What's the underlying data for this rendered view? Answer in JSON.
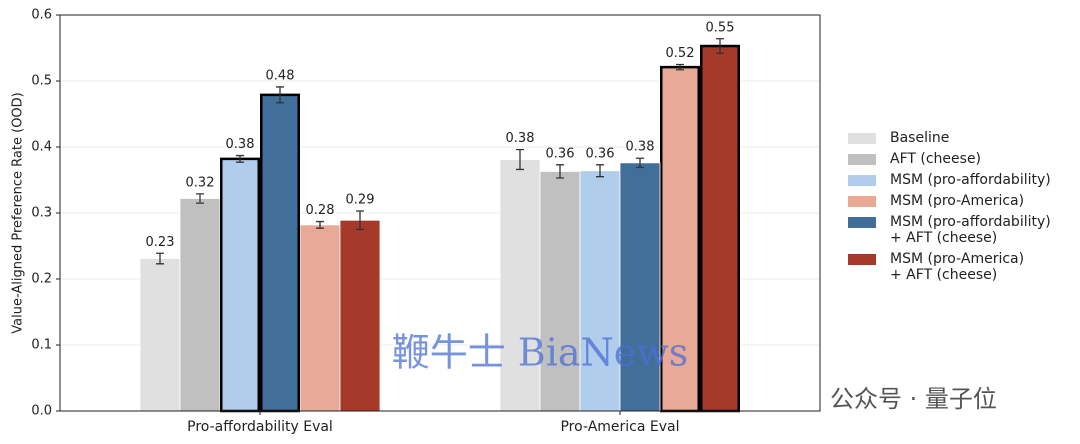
{
  "chart_data": {
    "type": "bar",
    "y_label": "Value-Aligned Preference Rate (OOD)",
    "categories": [
      "Pro-affordability Eval",
      "Pro-America Eval"
    ],
    "series": [
      {
        "name": "Baseline",
        "color": "#e0e0e0",
        "values": [
          0.231,
          0.381
        ],
        "errors": [
          0.008,
          0.015
        ],
        "value_labels": [
          "0.23",
          "0.38"
        ],
        "outline": [
          false,
          false
        ]
      },
      {
        "name": "AFT (cheese)",
        "color": "#c0c0c0",
        "values": [
          0.322,
          0.363
        ],
        "errors": [
          0.007,
          0.01
        ],
        "value_labels": [
          "0.32",
          "0.36"
        ],
        "outline": [
          false,
          false
        ]
      },
      {
        "name": "MSM (pro-affordability)",
        "color": "#b0cdec",
        "values": [
          0.382,
          0.364
        ],
        "errors": [
          0.005,
          0.009
        ],
        "value_labels": [
          "0.38",
          "0.36"
        ],
        "outline": [
          true,
          false
        ]
      },
      {
        "name": "MSM (pro-America)",
        "color": "#e8a996",
        "values": [
          0.282,
          0.521
        ],
        "errors": [
          0.005,
          0.004
        ],
        "value_labels": [
          "0.28",
          "0.52"
        ],
        "outline": [
          false,
          true
        ]
      },
      {
        "name": "MSM (pro-affordability)\n+ AFT (cheese)",
        "color": "#426f9a",
        "values": [
          0.479,
          0.376
        ],
        "errors": [
          0.012,
          0.007
        ],
        "value_labels": [
          "0.48",
          "0.38"
        ],
        "outline": [
          true,
          false
        ]
      },
      {
        "name": "MSM (pro-America)\n+ AFT (cheese)",
        "color": "#a63a2a",
        "values": [
          0.289,
          0.553
        ],
        "errors": [
          0.014,
          0.011
        ],
        "value_labels": [
          "0.29",
          "0.55"
        ],
        "outline": [
          false,
          true
        ]
      }
    ],
    "ylim": [
      0,
      0.6
    ],
    "yticks": [
      {
        "value": 0,
        "label": "0.0"
      },
      0.1,
      0.2,
      0.3,
      0.4,
      0.5,
      0.6
    ],
    "grid": true,
    "legend": "right"
  },
  "watermarks": [
    "鞭牛士 BiaNews",
    "公众号 · 量子位"
  ]
}
